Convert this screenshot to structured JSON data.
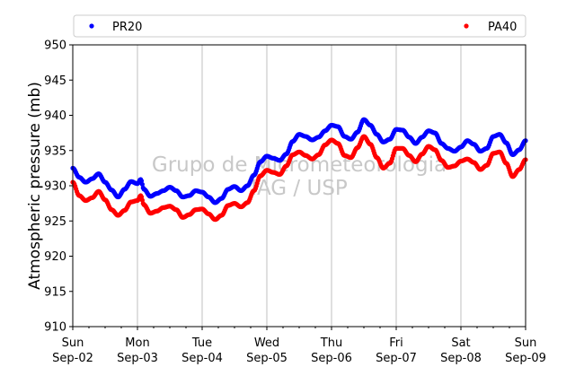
{
  "chart_data": {
    "type": "scatter",
    "title": "",
    "ylabel": "Atmospheric pressure (mb)",
    "xlabel": "",
    "ylim": [
      910,
      950
    ],
    "yticks": [
      910,
      915,
      920,
      925,
      930,
      935,
      940,
      945,
      950
    ],
    "xlim_days": [
      0,
      7
    ],
    "xticks": [
      {
        "day": 0,
        "line1": "Sun",
        "line2": "Sep-02"
      },
      {
        "day": 1,
        "line1": "Mon",
        "line2": "Sep-03"
      },
      {
        "day": 2,
        "line1": "Tue",
        "line2": "Sep-04"
      },
      {
        "day": 3,
        "line1": "Wed",
        "line2": "Sep-05"
      },
      {
        "day": 4,
        "line1": "Thu",
        "line2": "Sep-06"
      },
      {
        "day": 5,
        "line1": "Fri",
        "line2": "Sep-07"
      },
      {
        "day": 6,
        "line1": "Sat",
        "line2": "Sep-08"
      },
      {
        "day": 7,
        "line1": "Sun",
        "line2": "Sep-09"
      }
    ],
    "grid": "x",
    "legend_position": "top-outside",
    "watermark": [
      "Grupo de Micrometeorologia",
      "IAG / USP"
    ],
    "series": [
      {
        "name": "PR20",
        "color": "#0000ff",
        "points": [
          [
            0.0,
            932.5
          ],
          [
            0.1,
            931.2
          ],
          [
            0.2,
            930.5
          ],
          [
            0.3,
            931.0
          ],
          [
            0.4,
            931.7
          ],
          [
            0.5,
            930.5
          ],
          [
            0.6,
            929.4
          ],
          [
            0.7,
            928.4
          ],
          [
            0.8,
            929.5
          ],
          [
            0.9,
            930.6
          ],
          [
            1.0,
            930.3
          ],
          [
            1.05,
            930.9
          ],
          [
            1.1,
            929.5
          ],
          [
            1.2,
            928.5
          ],
          [
            1.3,
            928.9
          ],
          [
            1.4,
            929.3
          ],
          [
            1.5,
            929.8
          ],
          [
            1.6,
            929.3
          ],
          [
            1.7,
            928.4
          ],
          [
            1.8,
            928.6
          ],
          [
            1.9,
            929.3
          ],
          [
            2.0,
            929.1
          ],
          [
            2.1,
            928.4
          ],
          [
            2.2,
            927.6
          ],
          [
            2.3,
            928.2
          ],
          [
            2.4,
            929.5
          ],
          [
            2.5,
            929.9
          ],
          [
            2.6,
            929.3
          ],
          [
            2.7,
            930.0
          ],
          [
            2.8,
            931.5
          ],
          [
            2.9,
            933.4
          ],
          [
            3.0,
            934.2
          ],
          [
            3.1,
            933.9
          ],
          [
            3.2,
            933.6
          ],
          [
            3.3,
            934.5
          ],
          [
            3.4,
            936.3
          ],
          [
            3.5,
            937.3
          ],
          [
            3.6,
            937.0
          ],
          [
            3.7,
            936.5
          ],
          [
            3.8,
            936.9
          ],
          [
            3.9,
            937.8
          ],
          [
            4.0,
            938.6
          ],
          [
            4.1,
            938.4
          ],
          [
            4.2,
            937.0
          ],
          [
            4.3,
            936.6
          ],
          [
            4.4,
            937.6
          ],
          [
            4.5,
            939.4
          ],
          [
            4.6,
            938.6
          ],
          [
            4.7,
            937.3
          ],
          [
            4.8,
            936.2
          ],
          [
            4.9,
            936.6
          ],
          [
            5.0,
            938.0
          ],
          [
            5.1,
            937.9
          ],
          [
            5.2,
            936.9
          ],
          [
            5.3,
            936.0
          ],
          [
            5.4,
            936.9
          ],
          [
            5.5,
            937.8
          ],
          [
            5.6,
            937.5
          ],
          [
            5.7,
            936.0
          ],
          [
            5.8,
            935.3
          ],
          [
            5.9,
            934.9
          ],
          [
            6.0,
            935.5
          ],
          [
            6.1,
            936.4
          ],
          [
            6.2,
            935.9
          ],
          [
            6.3,
            934.9
          ],
          [
            6.4,
            935.3
          ],
          [
            6.5,
            937.0
          ],
          [
            6.6,
            937.3
          ],
          [
            6.7,
            936.1
          ],
          [
            6.8,
            934.4
          ],
          [
            6.9,
            935.1
          ],
          [
            7.0,
            936.4
          ]
        ]
      },
      {
        "name": "PA40",
        "color": "#ff0000",
        "points": [
          [
            0.0,
            930.5
          ],
          [
            0.1,
            928.6
          ],
          [
            0.2,
            927.9
          ],
          [
            0.3,
            928.3
          ],
          [
            0.4,
            929.2
          ],
          [
            0.5,
            928.0
          ],
          [
            0.6,
            926.6
          ],
          [
            0.7,
            925.8
          ],
          [
            0.8,
            926.5
          ],
          [
            0.9,
            927.7
          ],
          [
            1.0,
            927.9
          ],
          [
            1.05,
            928.6
          ],
          [
            1.1,
            927.3
          ],
          [
            1.2,
            926.1
          ],
          [
            1.3,
            926.4
          ],
          [
            1.4,
            926.9
          ],
          [
            1.5,
            927.1
          ],
          [
            1.6,
            926.6
          ],
          [
            1.7,
            925.5
          ],
          [
            1.8,
            925.9
          ],
          [
            1.9,
            926.6
          ],
          [
            2.0,
            926.7
          ],
          [
            2.1,
            926.0
          ],
          [
            2.2,
            925.2
          ],
          [
            2.3,
            925.8
          ],
          [
            2.4,
            927.2
          ],
          [
            2.5,
            927.5
          ],
          [
            2.6,
            927.0
          ],
          [
            2.7,
            927.6
          ],
          [
            2.8,
            929.3
          ],
          [
            2.9,
            931.4
          ],
          [
            3.0,
            932.2
          ],
          [
            3.1,
            931.9
          ],
          [
            3.2,
            931.6
          ],
          [
            3.3,
            932.8
          ],
          [
            3.4,
            934.4
          ],
          [
            3.5,
            934.8
          ],
          [
            3.6,
            934.3
          ],
          [
            3.7,
            933.8
          ],
          [
            3.8,
            934.4
          ],
          [
            3.9,
            935.8
          ],
          [
            4.0,
            936.5
          ],
          [
            4.1,
            936.0
          ],
          [
            4.2,
            934.3
          ],
          [
            4.3,
            934.0
          ],
          [
            4.4,
            935.4
          ],
          [
            4.5,
            937.0
          ],
          [
            4.6,
            935.9
          ],
          [
            4.7,
            934.0
          ],
          [
            4.8,
            932.5
          ],
          [
            4.9,
            933.2
          ],
          [
            5.0,
            935.3
          ],
          [
            5.1,
            935.3
          ],
          [
            5.2,
            934.3
          ],
          [
            5.3,
            933.4
          ],
          [
            5.4,
            934.5
          ],
          [
            5.5,
            935.6
          ],
          [
            5.6,
            935.1
          ],
          [
            5.7,
            933.6
          ],
          [
            5.8,
            932.6
          ],
          [
            5.9,
            932.8
          ],
          [
            6.0,
            933.5
          ],
          [
            6.1,
            933.8
          ],
          [
            6.2,
            933.3
          ],
          [
            6.3,
            932.3
          ],
          [
            6.4,
            932.9
          ],
          [
            6.5,
            934.6
          ],
          [
            6.6,
            934.8
          ],
          [
            6.7,
            933.2
          ],
          [
            6.8,
            931.3
          ],
          [
            6.9,
            932.3
          ],
          [
            7.0,
            933.7
          ]
        ]
      }
    ]
  }
}
